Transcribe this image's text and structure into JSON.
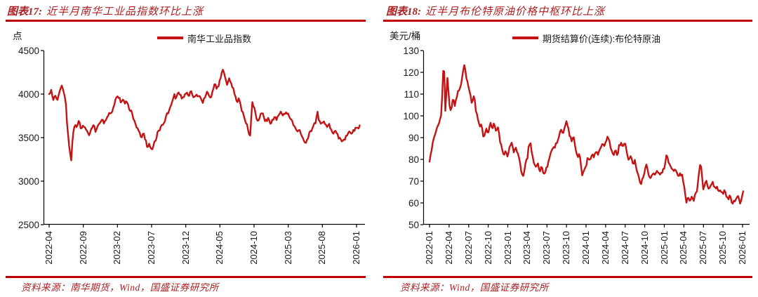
{
  "colors": {
    "line_red": "#c41313",
    "rule_red": "#c00000",
    "title_red": "#ae2023",
    "axis_color": "#000000",
    "text_color": "#1a1a1a"
  },
  "charts": [
    {
      "fig_label": "图表17:",
      "title": "近半月南华工业品指数环比上涨",
      "unit": "点",
      "legend": "南华工业品指数",
      "source": "资料来源：南华期货，Wind，国盛证券研究所"
    },
    {
      "fig_label": "图表18:",
      "title": "近半月布伦特原油价格中枢环比上涨",
      "unit": "美元/桶",
      "legend": "期货结算价(连续):布伦特原油",
      "source": "资料来源：Wind，国盛证券研究所"
    }
  ],
  "chart_data": [
    {
      "type": "line",
      "series_name": "南华工业品指数",
      "unit": "点",
      "x_range": [
        "2022-04",
        "2026-01"
      ],
      "x_tick_labels": [
        "2022-04",
        "2022-09",
        "2023-02",
        "2023-07",
        "2023-12",
        "2024-05",
        "2024-10",
        "2025-03",
        "2025-08",
        "2026-01"
      ],
      "x_tick_month_offsets": [
        0,
        5,
        10,
        15,
        20,
        25,
        30,
        35,
        40,
        45
      ],
      "ylim": [
        2500,
        4500
      ],
      "y_ticks": [
        4500,
        4000,
        3500,
        3000,
        2500
      ],
      "grid": false,
      "legend_position": "top-center",
      "noise_amplitude": 40,
      "points": [
        [
          0,
          3970
        ],
        [
          0.3,
          4060
        ],
        [
          0.6,
          3930
        ],
        [
          0.9,
          4010
        ],
        [
          1.2,
          3950
        ],
        [
          1.5,
          4030
        ],
        [
          1.8,
          4140
        ],
        [
          2.1,
          4050
        ],
        [
          2.4,
          3980
        ],
        [
          2.7,
          3600
        ],
        [
          3.2,
          3230
        ],
        [
          3.5,
          3550
        ],
        [
          3.8,
          3660
        ],
        [
          4.1,
          3600
        ],
        [
          4.4,
          3680
        ],
        [
          4.7,
          3560
        ],
        [
          5,
          3640
        ],
        [
          5.3,
          3600
        ],
        [
          5.6,
          3550
        ],
        [
          5.9,
          3520
        ],
        [
          6.2,
          3590
        ],
        [
          6.5,
          3640
        ],
        [
          6.8,
          3580
        ],
        [
          7.1,
          3640
        ],
        [
          7.4,
          3690
        ],
        [
          7.7,
          3720
        ],
        [
          8,
          3660
        ],
        [
          8.3,
          3700
        ],
        [
          8.6,
          3740
        ],
        [
          9,
          3790
        ],
        [
          9.3,
          3840
        ],
        [
          9.6,
          3900
        ],
        [
          9.9,
          3970
        ],
        [
          10.2,
          3950
        ],
        [
          10.5,
          3890
        ],
        [
          10.8,
          3930
        ],
        [
          11.1,
          3880
        ],
        [
          11.4,
          3910
        ],
        [
          11.7,
          3840
        ],
        [
          12,
          3800
        ],
        [
          12.3,
          3740
        ],
        [
          12.6,
          3660
        ],
        [
          12.9,
          3630
        ],
        [
          13.2,
          3560
        ],
        [
          13.5,
          3460
        ],
        [
          13.8,
          3530
        ],
        [
          14.1,
          3450
        ],
        [
          14.4,
          3370
        ],
        [
          14.7,
          3420
        ],
        [
          15,
          3360
        ],
        [
          15.3,
          3440
        ],
        [
          15.6,
          3500
        ],
        [
          15.9,
          3560
        ],
        [
          16.2,
          3600
        ],
        [
          16.5,
          3640
        ],
        [
          16.8,
          3670
        ],
        [
          17.1,
          3720
        ],
        [
          17.4,
          3790
        ],
        [
          17.7,
          3860
        ],
        [
          18,
          3930
        ],
        [
          18.3,
          4020
        ],
        [
          18.6,
          3960
        ],
        [
          18.9,
          4040
        ],
        [
          19.2,
          3980
        ],
        [
          19.5,
          3940
        ],
        [
          19.8,
          4000
        ],
        [
          20.1,
          4040
        ],
        [
          20.4,
          3980
        ],
        [
          20.7,
          4040
        ],
        [
          21,
          4000
        ],
        [
          21.3,
          3960
        ],
        [
          21.6,
          4020
        ],
        [
          21.9,
          3980
        ],
        [
          22.2,
          3940
        ],
        [
          22.5,
          3900
        ],
        [
          22.8,
          3960
        ],
        [
          23.1,
          4000
        ],
        [
          23.4,
          3970
        ],
        [
          23.7,
          3940
        ],
        [
          24,
          4050
        ],
        [
          24.3,
          4100
        ],
        [
          24.6,
          4060
        ],
        [
          24.9,
          4120
        ],
        [
          25.2,
          4230
        ],
        [
          25.5,
          4310
        ],
        [
          25.8,
          4190
        ],
        [
          26.1,
          4120
        ],
        [
          26.4,
          4190
        ],
        [
          26.7,
          4140
        ],
        [
          27,
          4060
        ],
        [
          27.3,
          3950
        ],
        [
          27.6,
          3900
        ],
        [
          27.9,
          3920
        ],
        [
          28.2,
          3820
        ],
        [
          28.5,
          3760
        ],
        [
          28.8,
          3680
        ],
        [
          29.1,
          3600
        ],
        [
          29.4,
          3460
        ],
        [
          29.7,
          3880
        ],
        [
          30,
          3850
        ],
        [
          30.3,
          3730
        ],
        [
          30.6,
          3690
        ],
        [
          30.9,
          3760
        ],
        [
          31.2,
          3790
        ],
        [
          31.5,
          3730
        ],
        [
          31.8,
          3700
        ],
        [
          32.1,
          3740
        ],
        [
          32.4,
          3680
        ],
        [
          32.7,
          3720
        ],
        [
          33,
          3760
        ],
        [
          33.3,
          3720
        ],
        [
          33.6,
          3770
        ],
        [
          33.9,
          3800
        ],
        [
          34.2,
          3740
        ],
        [
          34.5,
          3780
        ],
        [
          34.8,
          3800
        ],
        [
          35.1,
          3740
        ],
        [
          35.4,
          3690
        ],
        [
          35.7,
          3650
        ],
        [
          36,
          3610
        ],
        [
          36.3,
          3570
        ],
        [
          36.6,
          3590
        ],
        [
          36.9,
          3530
        ],
        [
          37.2,
          3490
        ],
        [
          37.5,
          3430
        ],
        [
          37.8,
          3470
        ],
        [
          38.1,
          3550
        ],
        [
          38.4,
          3610
        ],
        [
          38.7,
          3650
        ],
        [
          39,
          3700
        ],
        [
          39.25,
          3820
        ],
        [
          39.5,
          3700
        ],
        [
          39.8,
          3660
        ],
        [
          40.1,
          3700
        ],
        [
          40.4,
          3650
        ],
        [
          40.7,
          3610
        ],
        [
          41,
          3650
        ],
        [
          41.3,
          3600
        ],
        [
          41.6,
          3560
        ],
        [
          41.9,
          3580
        ],
        [
          42.2,
          3540
        ],
        [
          42.5,
          3490
        ],
        [
          42.8,
          3460
        ],
        [
          43.1,
          3440
        ],
        [
          43.4,
          3490
        ],
        [
          43.7,
          3530
        ],
        [
          44,
          3560
        ],
        [
          44.3,
          3540
        ],
        [
          44.6,
          3590
        ],
        [
          44.9,
          3620
        ],
        [
          45.2,
          3600
        ],
        [
          45.5,
          3670
        ]
      ]
    },
    {
      "type": "line",
      "series_name": "期货结算价(连续):布伦特原油",
      "unit": "美元/桶",
      "x_range": [
        "2022-01",
        "2026-01"
      ],
      "x_tick_labels": [
        "2022-01",
        "2022-04",
        "2022-07",
        "2022-10",
        "2023-01",
        "2023-04",
        "2023-07",
        "2023-10",
        "2024-01",
        "2024-04",
        "2024-07",
        "2024-10",
        "2025-01",
        "2025-04",
        "2025-07",
        "2025-10",
        "2026-01"
      ],
      "x_tick_month_offsets": [
        0,
        3,
        6,
        9,
        12,
        15,
        18,
        21,
        24,
        27,
        30,
        33,
        36,
        39,
        42,
        45,
        48
      ],
      "ylim": [
        50,
        130
      ],
      "y_ticks": [
        130,
        120,
        110,
        100,
        90,
        80,
        70,
        60,
        50
      ],
      "grid": false,
      "legend_position": "top-center",
      "noise_amplitude": 1.6,
      "points": [
        [
          0,
          78
        ],
        [
          0.3,
          84
        ],
        [
          0.6,
          88
        ],
        [
          0.9,
          91
        ],
        [
          1.2,
          94
        ],
        [
          1.5,
          96
        ],
        [
          1.8,
          99
        ],
        [
          2.2,
          127
        ],
        [
          2.45,
          99
        ],
        [
          2.7,
          120
        ],
        [
          3,
          107
        ],
        [
          3.3,
          102
        ],
        [
          3.6,
          108
        ],
        [
          3.9,
          104
        ],
        [
          4.2,
          109
        ],
        [
          4.5,
          112
        ],
        [
          4.8,
          114
        ],
        [
          5.1,
          120
        ],
        [
          5.35,
          123
        ],
        [
          5.6,
          118
        ],
        [
          5.9,
          114
        ],
        [
          6.2,
          111
        ],
        [
          6.5,
          105
        ],
        [
          6.8,
          110
        ],
        [
          7.1,
          103
        ],
        [
          7.4,
          99
        ],
        [
          7.7,
          94
        ],
        [
          8,
          96
        ],
        [
          8.3,
          89
        ],
        [
          8.7,
          93
        ],
        [
          9,
          90
        ],
        [
          9.3,
          97
        ],
        [
          9.6,
          93
        ],
        [
          9.9,
          96
        ],
        [
          10.2,
          92
        ],
        [
          10.5,
          95
        ],
        [
          10.8,
          88
        ],
        [
          11.1,
          85
        ],
        [
          11.4,
          81
        ],
        [
          11.7,
          84
        ],
        [
          12,
          81
        ],
        [
          12.3,
          85
        ],
        [
          12.6,
          88
        ],
        [
          12.9,
          83
        ],
        [
          13.2,
          86
        ],
        [
          13.5,
          83
        ],
        [
          13.8,
          80
        ],
        [
          14.1,
          75
        ],
        [
          14.4,
          73
        ],
        [
          14.7,
          79
        ],
        [
          15,
          80
        ],
        [
          15.2,
          85
        ],
        [
          15.45,
          87
        ],
        [
          15.7,
          83
        ],
        [
          16,
          78
        ],
        [
          16.3,
          76
        ],
        [
          16.6,
          78
        ],
        [
          16.9,
          74
        ],
        [
          17.2,
          76
        ],
        [
          17.5,
          72
        ],
        [
          17.8,
          74
        ],
        [
          18.1,
          77
        ],
        [
          18.4,
          80
        ],
        [
          18.7,
          84
        ],
        [
          19,
          86
        ],
        [
          19.3,
          85
        ],
        [
          19.6,
          88
        ],
        [
          19.9,
          91
        ],
        [
          20.2,
          93
        ],
        [
          20.5,
          91
        ],
        [
          20.9,
          97
        ],
        [
          21.2,
          95
        ],
        [
          21.5,
          90
        ],
        [
          21.8,
          88
        ],
        [
          22.1,
          90
        ],
        [
          22.4,
          85
        ],
        [
          22.7,
          81
        ],
        [
          23,
          83
        ],
        [
          23.4,
          73
        ],
        [
          23.7,
          76
        ],
        [
          24,
          78
        ],
        [
          24.3,
          82
        ],
        [
          24.6,
          80
        ],
        [
          24.9,
          83
        ],
        [
          25.2,
          81
        ],
        [
          25.5,
          84
        ],
        [
          25.8,
          82
        ],
        [
          26.1,
          85
        ],
        [
          26.4,
          87
        ],
        [
          26.7,
          86
        ],
        [
          27,
          88
        ],
        [
          27.3,
          91
        ],
        [
          27.6,
          89
        ],
        [
          27.9,
          84
        ],
        [
          28.2,
          82
        ],
        [
          28.5,
          84
        ],
        [
          28.8,
          81
        ],
        [
          29.1,
          86
        ],
        [
          29.4,
          87
        ],
        [
          29.7,
          85
        ],
        [
          30,
          87
        ],
        [
          30.3,
          82
        ],
        [
          30.6,
          79
        ],
        [
          30.9,
          81
        ],
        [
          31.2,
          77
        ],
        [
          31.5,
          79
        ],
        [
          31.8,
          74
        ],
        [
          32.1,
          72
        ],
        [
          32.4,
          69
        ],
        [
          32.7,
          72
        ],
        [
          33,
          75
        ],
        [
          33.3,
          78
        ],
        [
          33.6,
          74
        ],
        [
          33.9,
          72
        ],
        [
          34.2,
          74
        ],
        [
          34.5,
          72
        ],
        [
          34.8,
          74
        ],
        [
          35.1,
          72
        ],
        [
          35.4,
          73
        ],
        [
          35.7,
          74
        ],
        [
          36,
          76
        ],
        [
          36.4,
          82
        ],
        [
          36.7,
          78
        ],
        [
          37,
          76
        ],
        [
          37.3,
          74
        ],
        [
          37.6,
          75
        ],
        [
          37.9,
          73
        ],
        [
          38.2,
          71
        ],
        [
          38.5,
          73
        ],
        [
          38.8,
          72
        ],
        [
          39.1,
          66
        ],
        [
          39.35,
          60
        ],
        [
          39.6,
          64
        ],
        [
          39.9,
          61
        ],
        [
          40.2,
          63
        ],
        [
          40.5,
          62
        ],
        [
          40.8,
          64
        ],
        [
          41.1,
          66
        ],
        [
          41.45,
          78
        ],
        [
          41.7,
          76
        ],
        [
          41.95,
          67
        ],
        [
          42.2,
          69
        ],
        [
          42.5,
          70
        ],
        [
          42.8,
          67
        ],
        [
          43.1,
          68
        ],
        [
          43.4,
          69
        ],
        [
          43.7,
          66
        ],
        [
          44,
          68
        ],
        [
          44.3,
          66
        ],
        [
          44.6,
          67
        ],
        [
          44.9,
          65
        ],
        [
          45.2,
          66
        ],
        [
          45.5,
          64
        ],
        [
          45.8,
          62
        ],
        [
          46.1,
          63
        ],
        [
          46.4,
          59
        ],
        [
          46.7,
          62
        ],
        [
          47,
          61
        ],
        [
          47.3,
          63
        ],
        [
          47.6,
          60
        ],
        [
          47.9,
          62
        ],
        [
          48.2,
          65.5
        ]
      ]
    }
  ]
}
